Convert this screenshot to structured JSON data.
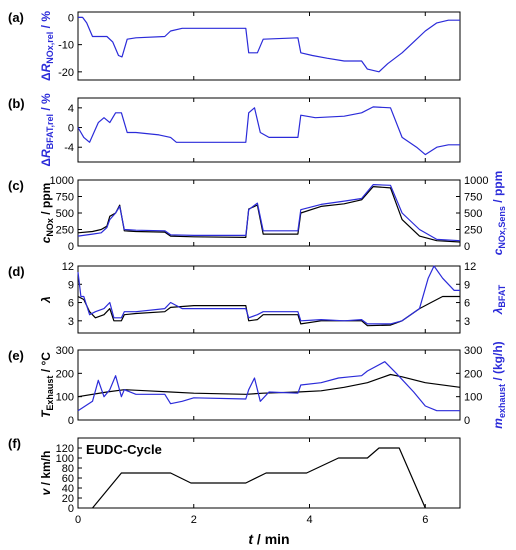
{
  "figure": {
    "x_axis": {
      "label_var": "t",
      "label_unit": " / min",
      "ticks": [
        "0",
        "2",
        "4",
        "6"
      ],
      "range": [
        0,
        6.6
      ]
    },
    "colors": {
      "black": "#000000",
      "blue": "#2b2bd9"
    }
  },
  "chart_data": [
    {
      "type": "line",
      "panel_label": "(a)",
      "ylabel": {
        "prefix": "Δ",
        "var": "R",
        "sub": "NOx,rel",
        "unit": " / %",
        "color": "#2b2bd9"
      },
      "ylim": [
        -23,
        2
      ],
      "yticks": [
        0,
        -10,
        -20
      ],
      "series": [
        {
          "color": "#2b2bd9",
          "points": [
            [
              0,
              0
            ],
            [
              0.08,
              0
            ],
            [
              0.15,
              -2
            ],
            [
              0.25,
              -7
            ],
            [
              0.5,
              -7
            ],
            [
              0.6,
              -9
            ],
            [
              0.7,
              -14
            ],
            [
              0.76,
              -14.5
            ],
            [
              0.85,
              -8
            ],
            [
              1.0,
              -7.5
            ],
            [
              1.5,
              -7
            ],
            [
              1.6,
              -5
            ],
            [
              1.8,
              -4
            ],
            [
              2.9,
              -4
            ],
            [
              2.95,
              -13
            ],
            [
              3.1,
              -13
            ],
            [
              3.2,
              -8
            ],
            [
              3.8,
              -7.5
            ],
            [
              3.85,
              -13
            ],
            [
              4.05,
              -14
            ],
            [
              4.3,
              -15
            ],
            [
              4.6,
              -16
            ],
            [
              4.8,
              -16
            ],
            [
              4.9,
              -16
            ],
            [
              5.0,
              -19
            ],
            [
              5.2,
              -20
            ],
            [
              5.35,
              -17
            ],
            [
              5.6,
              -13
            ],
            [
              5.8,
              -9
            ],
            [
              6.0,
              -5
            ],
            [
              6.2,
              -2
            ],
            [
              6.4,
              -1
            ],
            [
              6.6,
              -1
            ]
          ]
        }
      ]
    },
    {
      "type": "line",
      "panel_label": "(b)",
      "ylabel": {
        "prefix": "Δ",
        "var": "R",
        "sub": "BFAT,rel",
        "unit": " / %",
        "color": "#2b2bd9"
      },
      "ylim": [
        -7,
        6
      ],
      "yticks": [
        4,
        0,
        -4
      ],
      "series": [
        {
          "color": "#2b2bd9",
          "points": [
            [
              0,
              0
            ],
            [
              0.1,
              -2
            ],
            [
              0.2,
              -3
            ],
            [
              0.35,
              1
            ],
            [
              0.45,
              2
            ],
            [
              0.55,
              1
            ],
            [
              0.65,
              3
            ],
            [
              0.75,
              3
            ],
            [
              0.85,
              -1
            ],
            [
              1.0,
              -1
            ],
            [
              1.4,
              -1.5
            ],
            [
              1.6,
              -2
            ],
            [
              1.7,
              -3
            ],
            [
              2.0,
              -3
            ],
            [
              2.9,
              -3
            ],
            [
              2.95,
              3
            ],
            [
              3.05,
              4
            ],
            [
              3.15,
              -1
            ],
            [
              3.3,
              -2
            ],
            [
              3.8,
              -2
            ],
            [
              3.85,
              2.5
            ],
            [
              4.1,
              2
            ],
            [
              4.6,
              2.3
            ],
            [
              4.9,
              3
            ],
            [
              5.1,
              4.2
            ],
            [
              5.4,
              4
            ],
            [
              5.6,
              -2
            ],
            [
              5.85,
              -4
            ],
            [
              6.0,
              -5.5
            ],
            [
              6.2,
              -4
            ],
            [
              6.4,
              -3.5
            ],
            [
              6.6,
              -3.5
            ]
          ]
        }
      ]
    },
    {
      "type": "line",
      "panel_label": "(c)",
      "ylabel": {
        "var": "c",
        "sub": "NOx",
        "unit": " / ppm",
        "color": "#000000"
      },
      "ylabel_right": {
        "var": "c",
        "sub": "NOx,Sens",
        "unit": " / ppm",
        "color": "#2b2bd9"
      },
      "ylim": [
        0,
        1000
      ],
      "yticks": [
        0,
        250,
        500,
        750,
        1000
      ],
      "yticks_right": [
        0,
        250,
        500,
        750,
        1000
      ],
      "series": [
        {
          "color": "#000000",
          "points": [
            [
              0,
              200
            ],
            [
              0.25,
              220
            ],
            [
              0.4,
              250
            ],
            [
              0.5,
              300
            ],
            [
              0.55,
              450
            ],
            [
              0.65,
              500
            ],
            [
              0.72,
              620
            ],
            [
              0.8,
              230
            ],
            [
              1.0,
              220
            ],
            [
              1.5,
              210
            ],
            [
              1.6,
              150
            ],
            [
              2.0,
              140
            ],
            [
              2.9,
              130
            ],
            [
              2.95,
              560
            ],
            [
              3.1,
              620
            ],
            [
              3.2,
              180
            ],
            [
              3.8,
              180
            ],
            [
              3.85,
              500
            ],
            [
              4.2,
              600
            ],
            [
              4.6,
              640
            ],
            [
              4.9,
              700
            ],
            [
              5.1,
              900
            ],
            [
              5.4,
              880
            ],
            [
              5.6,
              400
            ],
            [
              5.9,
              150
            ],
            [
              6.2,
              80
            ],
            [
              6.6,
              60
            ]
          ]
        },
        {
          "color": "#2b2bd9",
          "points": [
            [
              0,
              150
            ],
            [
              0.25,
              180
            ],
            [
              0.4,
              200
            ],
            [
              0.5,
              280
            ],
            [
              0.55,
              400
            ],
            [
              0.65,
              500
            ],
            [
              0.72,
              600
            ],
            [
              0.8,
              250
            ],
            [
              1.0,
              240
            ],
            [
              1.5,
              230
            ],
            [
              1.6,
              170
            ],
            [
              2.0,
              160
            ],
            [
              2.9,
              160
            ],
            [
              2.95,
              550
            ],
            [
              3.1,
              650
            ],
            [
              3.2,
              230
            ],
            [
              3.8,
              230
            ],
            [
              3.85,
              550
            ],
            [
              4.2,
              630
            ],
            [
              4.6,
              680
            ],
            [
              4.9,
              720
            ],
            [
              5.1,
              930
            ],
            [
              5.4,
              920
            ],
            [
              5.6,
              500
            ],
            [
              5.9,
              250
            ],
            [
              6.2,
              100
            ],
            [
              6.6,
              80
            ]
          ]
        }
      ]
    },
    {
      "type": "line",
      "panel_label": "(d)",
      "ylabel": {
        "var": "λ",
        "sub": "",
        "unit": "",
        "color": "#000000"
      },
      "ylabel_right": {
        "var": "λ",
        "sub": "BFAT",
        "unit": "",
        "color": "#2b2bd9"
      },
      "ylim": [
        1,
        12
      ],
      "yticks": [
        3,
        6,
        9,
        12
      ],
      "yticks_right": [
        3,
        6,
        9,
        12
      ],
      "series": [
        {
          "color": "#000000",
          "points": [
            [
              0,
              7
            ],
            [
              0.1,
              6.5
            ],
            [
              0.2,
              4.5
            ],
            [
              0.3,
              3.5
            ],
            [
              0.45,
              4
            ],
            [
              0.55,
              5
            ],
            [
              0.62,
              3
            ],
            [
              0.75,
              3
            ],
            [
              0.8,
              4
            ],
            [
              1.0,
              4.2
            ],
            [
              1.5,
              4.5
            ],
            [
              1.6,
              5.2
            ],
            [
              2.0,
              5.5
            ],
            [
              2.9,
              5.5
            ],
            [
              2.95,
              3
            ],
            [
              3.1,
              3.2
            ],
            [
              3.2,
              4
            ],
            [
              3.8,
              4
            ],
            [
              3.85,
              2.5
            ],
            [
              4.2,
              3
            ],
            [
              4.6,
              3
            ],
            [
              4.9,
              3
            ],
            [
              5.0,
              2.2
            ],
            [
              5.4,
              2.3
            ],
            [
              5.6,
              3
            ],
            [
              5.9,
              5
            ],
            [
              6.1,
              6
            ],
            [
              6.3,
              7
            ],
            [
              6.6,
              7
            ]
          ]
        },
        {
          "color": "#2b2bd9",
          "points": [
            [
              0,
              11
            ],
            [
              0.05,
              7
            ],
            [
              0.1,
              7
            ],
            [
              0.2,
              4
            ],
            [
              0.3,
              4.5
            ],
            [
              0.45,
              5
            ],
            [
              0.55,
              6
            ],
            [
              0.62,
              3.5
            ],
            [
              0.75,
              3.5
            ],
            [
              0.8,
              4.5
            ],
            [
              1.0,
              4.5
            ],
            [
              1.5,
              5
            ],
            [
              1.6,
              6
            ],
            [
              1.8,
              5
            ],
            [
              2.0,
              5
            ],
            [
              2.9,
              5
            ],
            [
              2.95,
              3.5
            ],
            [
              3.1,
              4
            ],
            [
              3.2,
              4.5
            ],
            [
              3.8,
              4.5
            ],
            [
              3.85,
              3
            ],
            [
              4.2,
              3.2
            ],
            [
              4.6,
              3
            ],
            [
              4.9,
              3.2
            ],
            [
              5.0,
              2.5
            ],
            [
              5.4,
              2.5
            ],
            [
              5.6,
              3
            ],
            [
              5.9,
              5
            ],
            [
              6.05,
              10
            ],
            [
              6.15,
              12
            ],
            [
              6.3,
              10
            ],
            [
              6.4,
              9
            ],
            [
              6.5,
              8
            ],
            [
              6.6,
              8
            ]
          ]
        }
      ]
    },
    {
      "type": "line",
      "panel_label": "(e)",
      "ylabel": {
        "var": "T",
        "sub": "Exhaust",
        "unit": " / °C",
        "color": "#000000"
      },
      "ylabel_right": {
        "var": "m",
        "sub": "exhaust",
        "unit": " / (kg/h)",
        "color": "#2b2bd9"
      },
      "ylim": [
        0,
        300
      ],
      "yticks": [
        0,
        100,
        200,
        300
      ],
      "yticks_right": [
        0,
        100,
        200,
        300
      ],
      "series": [
        {
          "color": "#000000",
          "points": [
            [
              0,
              100
            ],
            [
              0.5,
              120
            ],
            [
              0.8,
              130
            ],
            [
              1.2,
              125
            ],
            [
              1.6,
              120
            ],
            [
              2.0,
              115
            ],
            [
              2.9,
              110
            ],
            [
              3.2,
              115
            ],
            [
              3.8,
              120
            ],
            [
              4.2,
              125
            ],
            [
              4.6,
              140
            ],
            [
              5.0,
              160
            ],
            [
              5.4,
              195
            ],
            [
              5.6,
              185
            ],
            [
              6.0,
              160
            ],
            [
              6.6,
              140
            ]
          ]
        },
        {
          "color": "#2b2bd9",
          "points": [
            [
              0,
              40
            ],
            [
              0.25,
              80
            ],
            [
              0.35,
              170
            ],
            [
              0.45,
              100
            ],
            [
              0.55,
              130
            ],
            [
              0.65,
              190
            ],
            [
              0.75,
              100
            ],
            [
              0.8,
              130
            ],
            [
              1.0,
              110
            ],
            [
              1.5,
              110
            ],
            [
              1.6,
              70
            ],
            [
              1.8,
              80
            ],
            [
              2.0,
              95
            ],
            [
              2.9,
              90
            ],
            [
              2.95,
              130
            ],
            [
              3.05,
              180
            ],
            [
              3.15,
              80
            ],
            [
              3.3,
              120
            ],
            [
              3.8,
              115
            ],
            [
              3.85,
              150
            ],
            [
              4.2,
              160
            ],
            [
              4.5,
              180
            ],
            [
              4.7,
              185
            ],
            [
              4.9,
              190
            ],
            [
              5.0,
              210
            ],
            [
              5.3,
              250
            ],
            [
              5.5,
              200
            ],
            [
              5.8,
              120
            ],
            [
              6.0,
              60
            ],
            [
              6.2,
              40
            ],
            [
              6.6,
              40
            ]
          ]
        }
      ]
    },
    {
      "type": "line",
      "panel_label": "(f)",
      "ylabel": {
        "var": "v",
        "sub": "",
        "unit": " / km/h",
        "color": "#000000"
      },
      "ylim": [
        0,
        140
      ],
      "yticks": [
        0,
        20,
        40,
        60,
        80,
        100,
        120
      ],
      "annotation": "EUDC-Cycle",
      "series": [
        {
          "color": "#000000",
          "points": [
            [
              0.25,
              0
            ],
            [
              0.75,
              70
            ],
            [
              1.6,
              70
            ],
            [
              1.95,
              50
            ],
            [
              2.9,
              50
            ],
            [
              3.25,
              70
            ],
            [
              3.95,
              70
            ],
            [
              4.5,
              100
            ],
            [
              5.0,
              100
            ],
            [
              5.2,
              120
            ],
            [
              5.55,
              120
            ],
            [
              6.0,
              0
            ]
          ]
        }
      ]
    }
  ]
}
